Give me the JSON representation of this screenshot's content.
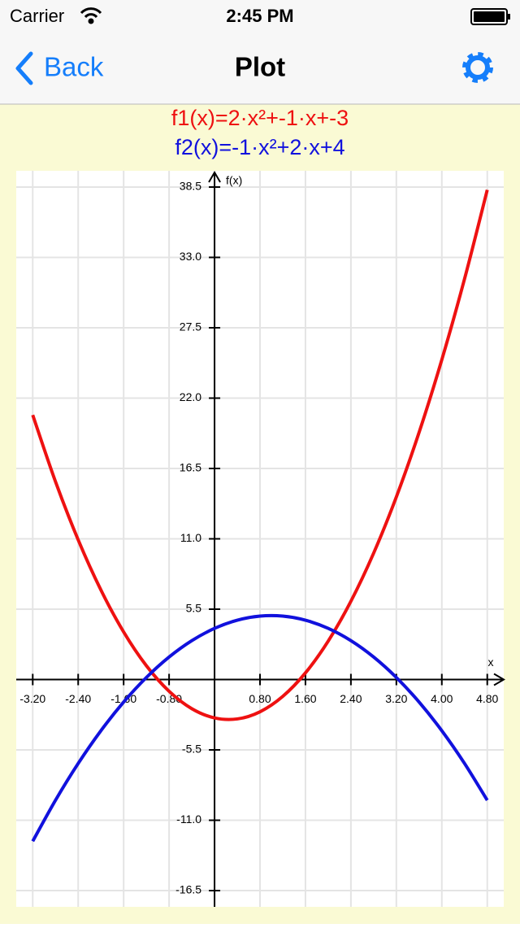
{
  "status_bar": {
    "carrier": "Carrier",
    "time": "2:45 PM"
  },
  "nav_bar": {
    "back": "Back",
    "title": "Plot"
  },
  "chart_data": {
    "type": "line",
    "x_label": "x",
    "y_label": "f(x)",
    "x": [
      -3.2,
      -2.8,
      -2.4,
      -2.0,
      -1.6,
      -1.2,
      -0.8,
      -0.4,
      0,
      0.4,
      0.8,
      1.2,
      1.6,
      2.0,
      2.4,
      2.8,
      3.2,
      3.6,
      4.0,
      4.4,
      4.8
    ],
    "series": [
      {
        "name": "f1(x)=2·x²+-1·x+-3",
        "color": "#ee1111",
        "values": [
          20.68,
          15.48,
          10.92,
          7,
          3.72,
          1.08,
          -0.92,
          -2.28,
          -3,
          -3.08,
          -2.52,
          -1.32,
          0.52,
          3,
          6.12,
          9.88,
          14.28,
          19.32,
          25,
          31.32,
          38.28
        ]
      },
      {
        "name": "f2(x)=-1·x²+2·x+4",
        "color": "#1111dd",
        "values": [
          -12.64,
          -9.44,
          -6.56,
          -4,
          -1.76,
          0.16,
          1.76,
          3.04,
          4,
          4.64,
          4.96,
          4.96,
          4.64,
          4,
          3.04,
          1.76,
          0.16,
          -1.76,
          -4,
          -6.56,
          -9.44
        ]
      }
    ],
    "xlim": [
      -3.49,
      5.09
    ],
    "ylim": [
      -17.77,
      39.77
    ],
    "xticks": [
      {
        "value": -3.2,
        "label": "-3.20"
      },
      {
        "value": -2.4,
        "label": "-2.40"
      },
      {
        "value": -1.6,
        "label": "-1.60"
      },
      {
        "value": -0.8,
        "label": "-0.80"
      },
      {
        "value": 0.8,
        "label": "0.80"
      },
      {
        "value": 1.6,
        "label": "1.60"
      },
      {
        "value": 2.4,
        "label": "2.40"
      },
      {
        "value": 3.2,
        "label": "3.20"
      },
      {
        "value": 4,
        "label": "4.00"
      },
      {
        "value": 4.8,
        "label": "4.80"
      }
    ],
    "yticks": [
      -16.5,
      {
        "value": -11,
        "label": "-11.0"
      },
      -5.5,
      5.5,
      {
        "value": 11,
        "label": "11.0"
      },
      16.5,
      {
        "value": 22,
        "label": "22.0"
      },
      27.5,
      {
        "value": 33,
        "label": "33.0"
      },
      38.5
    ],
    "grid": true
  }
}
